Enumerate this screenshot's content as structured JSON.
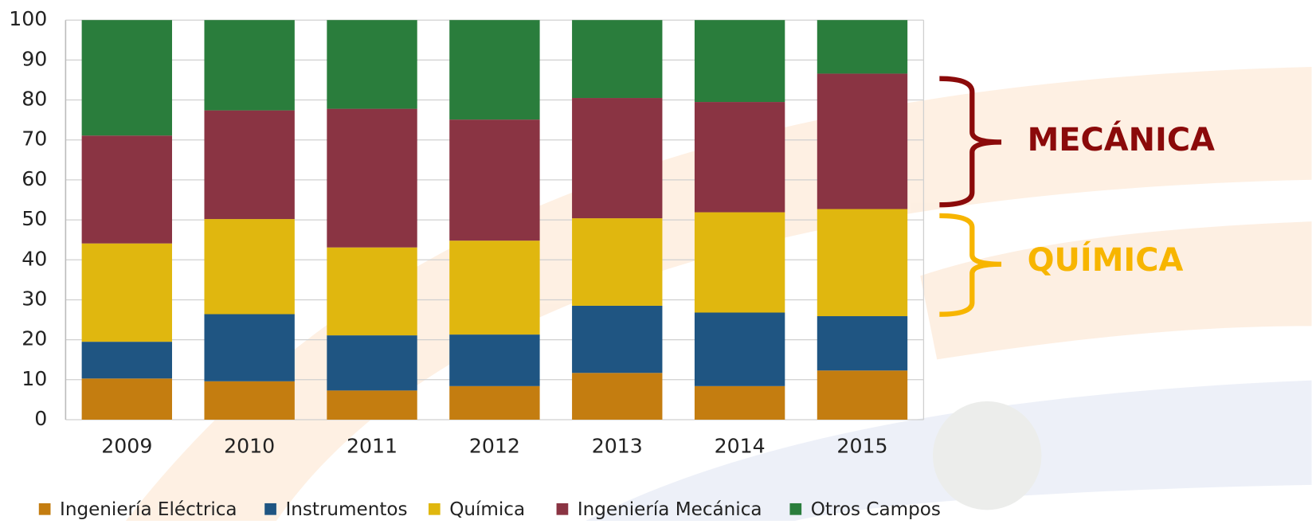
{
  "chart_data": {
    "type": "stacked-bar",
    "categories": [
      "2009",
      "2010",
      "2011",
      "2012",
      "2013",
      "2014",
      "2015"
    ],
    "series": [
      {
        "name": "Ingeniería Eléctrica",
        "color": "#c47d10",
        "values": [
          10.3,
          9.6,
          7.3,
          8.4,
          11.7,
          8.4,
          12.3
        ]
      },
      {
        "name": "Instrumentos",
        "color": "#1f5582",
        "values": [
          9.2,
          16.8,
          13.8,
          12.9,
          16.8,
          18.4,
          13.6
        ]
      },
      {
        "name": "Química",
        "color": "#e0b70f",
        "values": [
          24.6,
          23.8,
          22.0,
          23.5,
          21.9,
          25.1,
          26.8
        ]
      },
      {
        "name": "Ingeniería Mecánica",
        "color": "#8a3443",
        "values": [
          27.0,
          27.2,
          34.7,
          30.3,
          30.1,
          27.6,
          33.9
        ]
      },
      {
        "name": "Otros Campos",
        "color": "#2a7d3c",
        "values": [
          28.9,
          22.6,
          22.2,
          24.9,
          19.5,
          20.5,
          13.4
        ]
      }
    ],
    "ylim": [
      0,
      100
    ],
    "yticks": [
      0,
      10,
      20,
      30,
      40,
      50,
      60,
      70,
      80,
      90,
      100
    ],
    "grid": true,
    "annotations": [
      "MECÁNICA",
      "QUÍMICA"
    ]
  }
}
